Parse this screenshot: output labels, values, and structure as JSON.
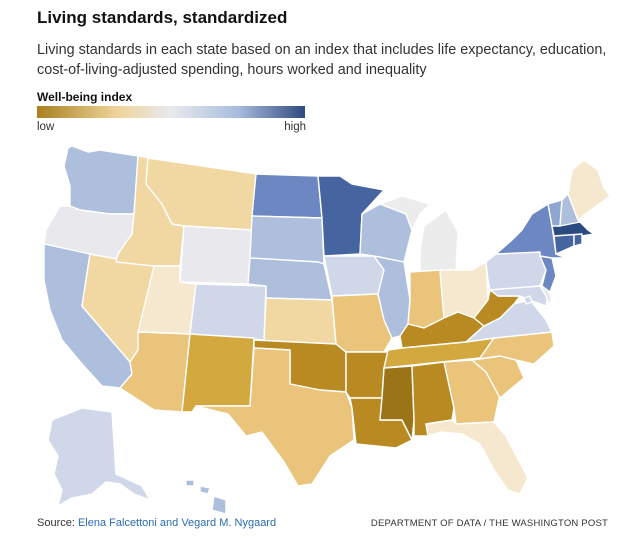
{
  "header": {
    "title": "Living standards, standardized",
    "subtitle": "Living standards in each state based on an index that includes life expectancy, education, cost-of-living-adjusted spending, hours worked and inequality"
  },
  "legend": {
    "title": "Well-being index",
    "low_label": "low",
    "high_label": "high",
    "color_low": "#a9801f",
    "color_mid_low": "#f0d49a",
    "color_mid": "#e9e9ee",
    "color_mid_high": "#a9bcdc",
    "color_high": "#2e4a82"
  },
  "footer": {
    "source_prefix": "Source: ",
    "source_link": "Elena Falcettoni and Vegard M. Nygaard",
    "credit": "DEPARTMENT OF DATA / THE WASHINGTON POST"
  },
  "palette": {
    "1": "#9c7418",
    "2": "#b98a22",
    "3": "#d3a83e",
    "4": "#e9c47a",
    "5": "#f1d7a2",
    "6": "#f5e8cf",
    "7": "#e8e8ed",
    "8": "#cfd7e8",
    "9": "#aebfdd",
    "10": "#8fa6d2",
    "11": "#6c87c2",
    "12": "#46649f",
    "13": "#2c4a82",
    "na": "#ececec"
  },
  "states": [
    {
      "id": "WA",
      "name": "Washington",
      "level": 9
    },
    {
      "id": "OR",
      "name": "Oregon",
      "level": 7
    },
    {
      "id": "CA",
      "name": "California",
      "level": 9
    },
    {
      "id": "NV",
      "name": "Nevada",
      "level": 5
    },
    {
      "id": "ID",
      "name": "Idaho",
      "level": 5
    },
    {
      "id": "MT",
      "name": "Montana",
      "level": 5
    },
    {
      "id": "WY",
      "name": "Wyoming",
      "level": 7
    },
    {
      "id": "UT",
      "name": "Utah",
      "level": 6
    },
    {
      "id": "AZ",
      "name": "Arizona",
      "level": 4
    },
    {
      "id": "CO",
      "name": "Colorado",
      "level": 8
    },
    {
      "id": "NM",
      "name": "New Mexico",
      "level": 3
    },
    {
      "id": "ND",
      "name": "North Dakota",
      "level": 11
    },
    {
      "id": "SD",
      "name": "South Dakota",
      "level": 9
    },
    {
      "id": "NE",
      "name": "Nebraska",
      "level": 9
    },
    {
      "id": "KS",
      "name": "Kansas",
      "level": 5
    },
    {
      "id": "OK",
      "name": "Oklahoma",
      "level": 2
    },
    {
      "id": "TX",
      "name": "Texas",
      "level": 4
    },
    {
      "id": "MN",
      "name": "Minnesota",
      "level": 12
    },
    {
      "id": "IA",
      "name": "Iowa",
      "level": 8
    },
    {
      "id": "MO",
      "name": "Missouri",
      "level": 4
    },
    {
      "id": "AR",
      "name": "Arkansas",
      "level": 2
    },
    {
      "id": "LA",
      "name": "Louisiana",
      "level": 2
    },
    {
      "id": "WI",
      "name": "Wisconsin",
      "level": 9
    },
    {
      "id": "IL",
      "name": "Illinois",
      "level": 9
    },
    {
      "id": "MI",
      "name": "Michigan",
      "level": "na"
    },
    {
      "id": "IN",
      "name": "Indiana",
      "level": 4
    },
    {
      "id": "OH",
      "name": "Ohio",
      "level": 6
    },
    {
      "id": "KY",
      "name": "Kentucky",
      "level": 2
    },
    {
      "id": "TN",
      "name": "Tennessee",
      "level": 3
    },
    {
      "id": "MS",
      "name": "Mississippi",
      "level": 1
    },
    {
      "id": "AL",
      "name": "Alabama",
      "level": 2
    },
    {
      "id": "GA",
      "name": "Georgia",
      "level": 4
    },
    {
      "id": "FL",
      "name": "Florida",
      "level": 6
    },
    {
      "id": "SC",
      "name": "South Carolina",
      "level": 4
    },
    {
      "id": "NC",
      "name": "North Carolina",
      "level": 4
    },
    {
      "id": "VA",
      "name": "Virginia",
      "level": 8
    },
    {
      "id": "WV",
      "name": "West Virginia",
      "level": 2
    },
    {
      "id": "PA",
      "name": "Pennsylvania",
      "level": 8
    },
    {
      "id": "NY",
      "name": "New York",
      "level": 11
    },
    {
      "id": "VT",
      "name": "Vermont",
      "level": 10
    },
    {
      "id": "NH",
      "name": "New Hampshire",
      "level": 9
    },
    {
      "id": "ME",
      "name": "Maine",
      "level": 6
    },
    {
      "id": "MA",
      "name": "Massachusetts",
      "level": 13
    },
    {
      "id": "CT",
      "name": "Connecticut",
      "level": 12
    },
    {
      "id": "RI",
      "name": "Rhode Island",
      "level": 12
    },
    {
      "id": "NJ",
      "name": "New Jersey",
      "level": 11
    },
    {
      "id": "DE",
      "name": "Delaware",
      "level": 7
    },
    {
      "id": "MD",
      "name": "Maryland",
      "level": 8
    },
    {
      "id": "DC",
      "name": "District of Columbia",
      "level": 8
    },
    {
      "id": "AK",
      "name": "Alaska",
      "level": 8
    },
    {
      "id": "HI",
      "name": "Hawaii",
      "level": 9
    }
  ]
}
